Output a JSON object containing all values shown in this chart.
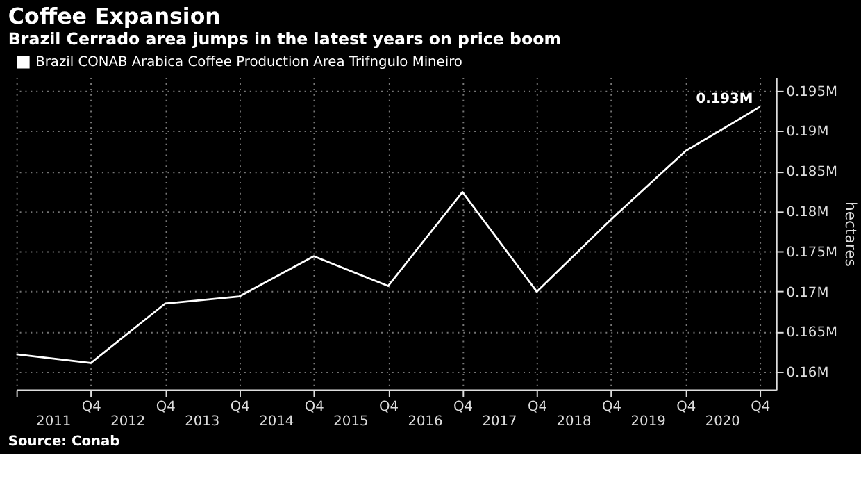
{
  "chart_data": {
    "type": "line",
    "title": "Coffee Expansion",
    "subtitle": "Brazil Cerrado area jumps in the latest years on price boom",
    "ylabel": "hectares",
    "categories": [
      null,
      "Q4",
      "Q4",
      "Q4",
      "Q4",
      "Q4",
      "Q4",
      "Q4",
      "Q4",
      "Q4",
      "Q4"
    ],
    "series": [
      {
        "name": "Brazil CONAB Arabica Coffee Production Area Trifngulo Mineiro",
        "color": "#ffffff",
        "values": [
          0.1622,
          0.1611,
          0.1685,
          0.1694,
          0.1744,
          0.1707,
          0.1824,
          0.17,
          0.179,
          0.1875,
          0.193
        ],
        "value_labels": [
          null,
          null,
          null,
          null,
          null,
          null,
          null,
          null,
          null,
          null,
          "0.193M"
        ]
      }
    ],
    "ylim": [
      0.1578,
      0.1967
    ],
    "yticks": [
      {
        "value": 0.16,
        "label": "0.16M"
      },
      {
        "value": 0.165,
        "label": "0.165M"
      },
      {
        "value": 0.17,
        "label": "0.17M"
      },
      {
        "value": 0.175,
        "label": "0.175M"
      },
      {
        "value": 0.18,
        "label": "0.18M"
      },
      {
        "value": 0.185,
        "label": "0.185M"
      },
      {
        "value": 0.19,
        "label": "0.19M"
      },
      {
        "value": 0.195,
        "label": "0.195M"
      }
    ],
    "grid": true,
    "legend": "top left",
    "marker": "none",
    "line_style": "solid",
    "annotations": [
      "2011",
      "2012",
      "2013",
      "2014",
      "2015",
      "2016",
      "2017",
      "2018",
      "2019",
      "2020",
      "Source: Conab"
    ]
  }
}
